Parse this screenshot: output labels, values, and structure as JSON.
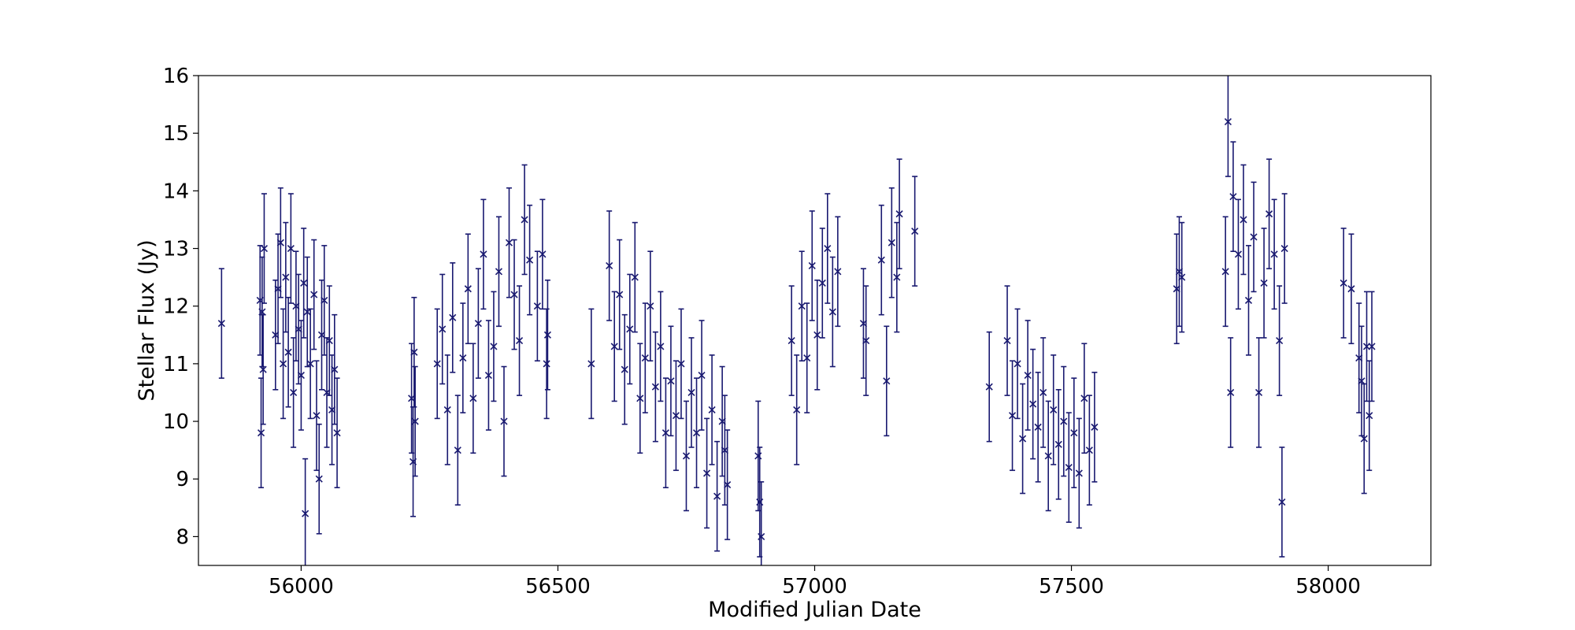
{
  "chart_data": {
    "type": "scatter",
    "title": "",
    "xlabel": "Modified Julian Date",
    "ylabel": "Stellar Flux (Jy)",
    "xlim": [
      55800,
      58200
    ],
    "ylim": [
      7.5,
      16
    ],
    "xticks": [
      56000,
      56500,
      57000,
      57500,
      58000
    ],
    "yticks": [
      8,
      9,
      10,
      11,
      12,
      13,
      14,
      15,
      16
    ],
    "xtick_labels": [
      "56000",
      "56500",
      "57000",
      "57500",
      "58000"
    ],
    "ytick_labels": [
      "8",
      "9",
      "10",
      "11",
      "12",
      "13",
      "14",
      "15",
      "16"
    ],
    "grid": false,
    "marker": "x",
    "error_bars": true,
    "color": "#191970",
    "series": [
      {
        "x": [
          55845,
          55920,
          55922,
          55924,
          55926,
          55928,
          55950,
          55955,
          55960,
          55965,
          55970,
          55975,
          55980,
          55985,
          55990,
          55995,
          56000,
          56005,
          56008,
          56012,
          56018,
          56025,
          56030,
          56035,
          56040,
          56045,
          56050,
          56055,
          56060,
          56065,
          56070,
          56215,
          56218,
          56220,
          56222,
          56265,
          56275,
          56285,
          56295,
          56305,
          56315,
          56325,
          56335,
          56345,
          56355,
          56365,
          56375,
          56385,
          56395,
          56405,
          56415,
          56425,
          56435,
          56445,
          56460,
          56470,
          56478,
          56480,
          56565,
          56600,
          56610,
          56620,
          56630,
          56640,
          56650,
          56660,
          56670,
          56680,
          56690,
          56700,
          56710,
          56720,
          56730,
          56740,
          56750,
          56760,
          56770,
          56780,
          56790,
          56800,
          56810,
          56820,
          56825,
          56830,
          56890,
          56893,
          56896,
          56955,
          56965,
          56975,
          56985,
          56995,
          57005,
          57015,
          57025,
          57035,
          57045,
          57095,
          57100,
          57130,
          57140,
          57150,
          57160,
          57165,
          57195,
          57340,
          57375,
          57385,
          57395,
          57405,
          57415,
          57425,
          57435,
          57445,
          57455,
          57465,
          57475,
          57485,
          57495,
          57505,
          57515,
          57525,
          57535,
          57545,
          57705,
          57710,
          57715,
          57800,
          57805,
          57810,
          57815,
          57825,
          57835,
          57845,
          57855,
          57865,
          57875,
          57885,
          57895,
          57905,
          57910,
          57915,
          58030,
          58045,
          58060,
          58065,
          58070,
          58075,
          58080,
          58085
        ],
        "y": [
          11.7,
          12.1,
          9.8,
          11.9,
          10.9,
          13.0,
          11.5,
          12.3,
          13.1,
          11.0,
          12.5,
          11.2,
          13.0,
          10.5,
          12.0,
          11.6,
          10.8,
          12.4,
          8.4,
          11.9,
          11.0,
          12.2,
          10.1,
          9.0,
          11.5,
          12.1,
          10.5,
          11.4,
          10.2,
          10.9,
          9.8,
          10.4,
          9.3,
          11.2,
          10.0,
          11.0,
          11.6,
          10.2,
          11.8,
          9.5,
          11.1,
          12.3,
          10.4,
          11.7,
          12.9,
          10.8,
          11.3,
          12.6,
          10.0,
          13.1,
          12.2,
          11.4,
          13.5,
          12.8,
          12.0,
          12.9,
          11.0,
          11.5,
          11.0,
          12.7,
          11.3,
          12.2,
          10.9,
          11.6,
          12.5,
          10.4,
          11.1,
          12.0,
          10.6,
          11.3,
          9.8,
          10.7,
          10.1,
          11.0,
          9.4,
          10.5,
          9.8,
          10.8,
          9.1,
          10.2,
          8.7,
          10.0,
          9.5,
          8.9,
          9.4,
          8.6,
          8.0,
          11.4,
          10.2,
          12.0,
          11.1,
          12.7,
          11.5,
          12.4,
          13.0,
          11.9,
          12.6,
          11.7,
          11.4,
          12.8,
          10.7,
          13.1,
          12.5,
          13.6,
          13.3,
          10.6,
          11.4,
          10.1,
          11.0,
          9.7,
          10.8,
          10.3,
          9.9,
          10.5,
          9.4,
          10.2,
          9.6,
          10.0,
          9.2,
          9.8,
          9.1,
          10.4,
          9.5,
          9.9,
          12.3,
          12.6,
          12.5,
          12.6,
          15.2,
          10.5,
          13.9,
          12.9,
          13.5,
          12.1,
          13.2,
          10.5,
          12.4,
          13.6,
          12.9,
          11.4,
          8.6,
          13.0,
          12.4,
          12.3,
          11.1,
          10.7,
          9.7,
          11.3,
          10.1,
          11.3
        ],
        "yerr": 0.95
      }
    ]
  }
}
